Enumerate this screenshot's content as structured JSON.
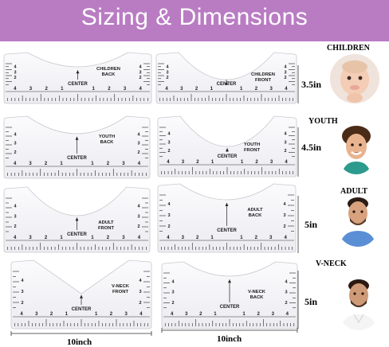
{
  "banner": {
    "title": "Sizing & Dimensions"
  },
  "rows": [
    {
      "category": "CHILDREN",
      "measurement": "3.5in",
      "left": {
        "label1": "CHILDREN",
        "label2": "BACK",
        "center": "CENTER"
      },
      "right": {
        "label1": "CHILDREN",
        "label2": "FRONT",
        "center": "CENTER"
      }
    },
    {
      "category": "YOUTH",
      "measurement": "4.5in",
      "left": {
        "label1": "YOUTH",
        "label2": "BACK",
        "center": "CENTER"
      },
      "right": {
        "label1": "YOUTH",
        "label2": "FRONT",
        "center": "CENTER"
      }
    },
    {
      "category": "ADULT",
      "measurement": "5in",
      "left": {
        "label1": "ADULT",
        "label2": "FRONT",
        "center": "CENTER"
      },
      "right": {
        "label1": "ADULT",
        "label2": "BACK",
        "center": "CENTER"
      }
    },
    {
      "category": "V-NECK",
      "measurement": "5in",
      "left": {
        "label1": "V-NECK",
        "label2": "FRONT",
        "center": "CENTER"
      },
      "right": {
        "label1": "V-NECK",
        "label2": "BACK",
        "center": "CENTER"
      }
    }
  ],
  "widths": {
    "left": "10inch",
    "right": "10inch"
  },
  "tick_numbers": [
    "4",
    "3",
    "2",
    "1",
    "1",
    "2",
    "3",
    "4"
  ],
  "colors": {
    "banner": "#b97cc3",
    "ruler_fill": "#f7f7f9",
    "ruler_edge": "#c9c9cf"
  },
  "icons": {
    "children": "baby-photo",
    "youth": "boy-photo",
    "adult": "man-photo",
    "vneck": "man-vneck-photo"
  }
}
